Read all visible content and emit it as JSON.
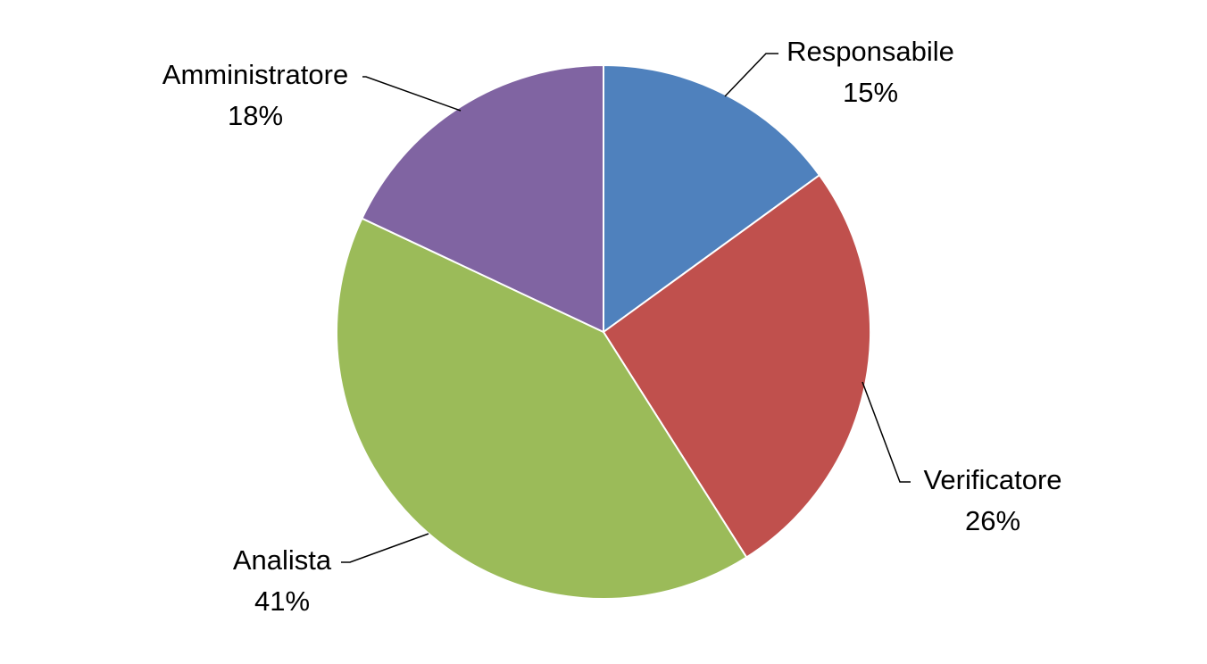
{
  "chart_data": {
    "type": "pie",
    "title": "",
    "start_angle_deg": 0,
    "direction": "clockwise",
    "slices": [
      {
        "name": "Responsabile",
        "value": 15,
        "label": "15%",
        "color": "#4F81BD",
        "label_anchor": "right"
      },
      {
        "name": "Verificatore",
        "value": 26,
        "label": "26%",
        "color": "#C0504D",
        "label_anchor": "right"
      },
      {
        "name": "Analista",
        "value": 41,
        "label": "41%",
        "color": "#9BBB59",
        "label_anchor": "left"
      },
      {
        "name": "Amministratore",
        "value": 18,
        "label": "18%",
        "color": "#8064A2",
        "label_anchor": "left"
      }
    ]
  }
}
